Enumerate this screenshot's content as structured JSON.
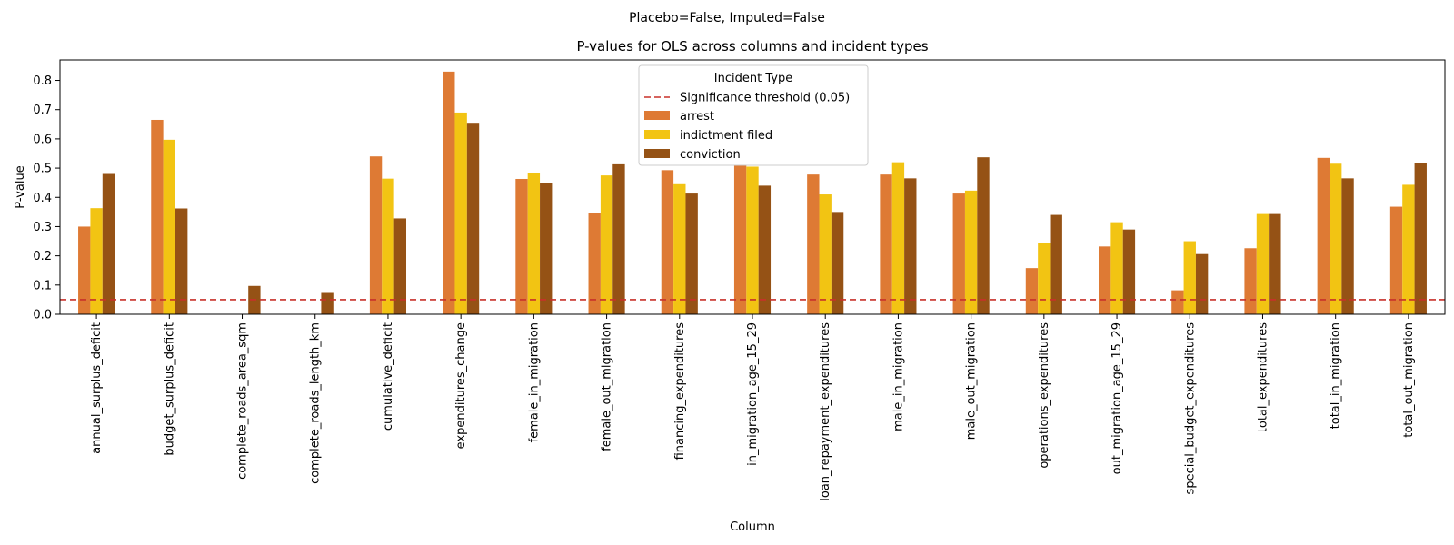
{
  "suptitle": "Placebo=False, Imputed=False",
  "colors": {
    "arrest": "#de7a34",
    "indictment_filed": "#f2c413",
    "conviction": "#955215",
    "threshold": "#c8302a"
  },
  "chart_data": {
    "type": "bar",
    "title": "P-values for OLS across columns and incident types",
    "xlabel": "Column",
    "ylabel": "P-value",
    "ylim": [
      0,
      0.87
    ],
    "yticks": [
      "0.0",
      "0.1",
      "0.2",
      "0.3",
      "0.4",
      "0.5",
      "0.6",
      "0.7",
      "0.8"
    ],
    "categories": [
      "annual_surplus_deficit",
      "budget_surplus_deficit",
      "complete_roads_area_sqm",
      "complete_roads_length_km",
      "cumulative_deficit",
      "expenditures_change",
      "female_in_migration",
      "female_out_migration",
      "financing_expenditures",
      "in_migration_age_15_29",
      "loan_repayment_expenditures",
      "male_in_migration",
      "male_out_migration",
      "operations_expenditures",
      "out_migration_age_15_29",
      "special_budget_expenditures",
      "total_expenditures",
      "total_in_migration",
      "total_out_migration"
    ],
    "series": [
      {
        "name": "arrest",
        "values": [
          0.3,
          0.665,
          0.0,
          0.0,
          0.54,
          0.83,
          0.463,
          0.347,
          0.493,
          0.51,
          0.478,
          0.478,
          0.413,
          0.158,
          0.232,
          0.082,
          0.226,
          0.535,
          0.368
        ]
      },
      {
        "name": "indictment filed",
        "values": [
          0.363,
          0.597,
          0.0,
          0.0,
          0.464,
          0.69,
          0.484,
          0.475,
          0.445,
          0.505,
          0.41,
          0.52,
          0.423,
          0.245,
          0.315,
          0.25,
          0.343,
          0.515,
          0.443
        ]
      },
      {
        "name": "conviction",
        "values": [
          0.48,
          0.362,
          0.097,
          0.073,
          0.328,
          0.655,
          0.45,
          0.513,
          0.413,
          0.44,
          0.35,
          0.465,
          0.537,
          0.34,
          0.29,
          0.206,
          0.343,
          0.465,
          0.516
        ]
      }
    ],
    "threshold": {
      "label": "Significance threshold (0.05)",
      "value": 0.05
    },
    "legend": {
      "title": "Incident Type",
      "placement": "top-center"
    },
    "grid": false
  }
}
